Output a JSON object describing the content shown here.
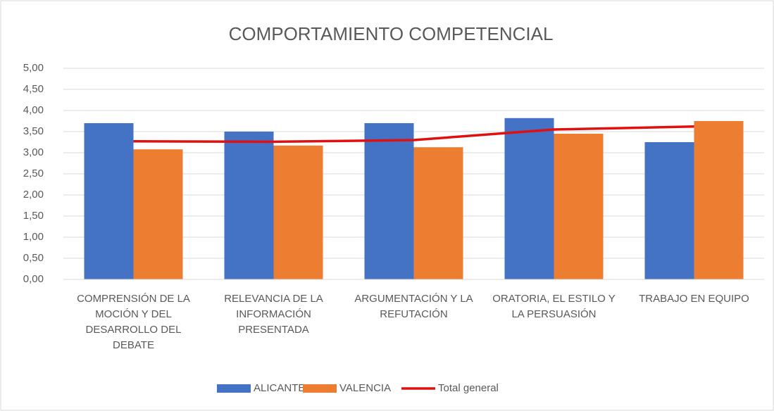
{
  "chart_data": {
    "type": "bar",
    "title": "COMPORTAMIENTO COMPETENCIAL",
    "categories": [
      "COMPRENSIÓN DE LA MOCIÓN Y DEL DESARROLLO DEL DEBATE",
      "RELEVANCIA DE LA INFORMACIÓN PRESENTADA",
      "ARGUMENTACIÓN Y LA REFUTACIÓN",
      "ORATORIA, EL ESTILO Y LA PERSUASIÓN",
      "TRABAJO EN EQUIPO"
    ],
    "series": [
      {
        "name": "ALICANTE",
        "color": "#4472c4",
        "type": "bar",
        "values": [
          3.7,
          3.5,
          3.7,
          3.82,
          3.25
        ]
      },
      {
        "name": "VALENCIA",
        "color": "#ed7d31",
        "type": "bar",
        "values": [
          3.08,
          3.17,
          3.13,
          3.45,
          3.75
        ]
      },
      {
        "name": "Total general",
        "color": "#e01010",
        "type": "line",
        "values": [
          3.27,
          3.26,
          3.3,
          3.55,
          3.62
        ]
      }
    ],
    "ylim": [
      0,
      5
    ],
    "yticks": [
      {
        "value": 0,
        "label": "0,00"
      },
      {
        "value": 0.5,
        "label": "0,50"
      },
      {
        "value": 1,
        "label": "1,00"
      },
      {
        "value": 1.5,
        "label": "1,50"
      },
      {
        "value": 2,
        "label": "2,00"
      },
      {
        "value": 2.5,
        "label": "2,50"
      },
      {
        "value": 3,
        "label": "3,00"
      },
      {
        "value": 3.5,
        "label": "3,50"
      },
      {
        "value": 4,
        "label": "4,00"
      },
      {
        "value": 4.5,
        "label": "4,50"
      },
      {
        "value": 5,
        "label": "5,00"
      }
    ],
    "grid": true,
    "legend": "bottom"
  }
}
